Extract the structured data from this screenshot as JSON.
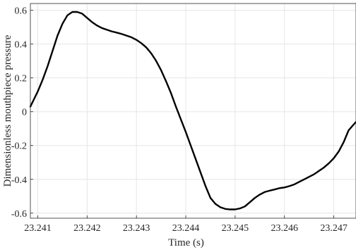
{
  "chart_data": {
    "type": "line",
    "title": "",
    "xlabel": "Time (s)",
    "ylabel": "Dimensionless mouthpiece pressure",
    "xlim": [
      23.24085,
      23.24745
    ],
    "ylim": [
      -0.63,
      0.64
    ],
    "x_ticks": [
      23.241,
      23.242,
      23.243,
      23.244,
      23.245,
      23.246,
      23.247
    ],
    "x_tick_labels": [
      "23.241",
      "23.242",
      "23.243",
      "23.244",
      "23.245",
      "23.246",
      "23.247"
    ],
    "y_ticks": [
      -0.6,
      -0.4,
      -0.2,
      0,
      0.2,
      0.4,
      0.6
    ],
    "y_tick_labels": [
      "-0.6",
      "-0.4",
      "-0.2",
      "0",
      "0.2",
      "0.4",
      "0.6"
    ],
    "grid": true,
    "line_color": "#000000",
    "series": [
      {
        "x": [
          23.24085,
          23.241,
          23.2411,
          23.2412,
          23.2413,
          23.2414,
          23.2415,
          23.2416,
          23.2417,
          23.2418,
          23.2419,
          23.242,
          23.2421,
          23.2422,
          23.2423,
          23.2424,
          23.2425,
          23.2426,
          23.2427,
          23.2428,
          23.2429,
          23.243,
          23.2431,
          23.2432,
          23.2433,
          23.2434,
          23.2435,
          23.2436,
          23.2437,
          23.2438,
          23.2439,
          23.244,
          23.2441,
          23.2442,
          23.2443,
          23.2444,
          23.2445,
          23.2446,
          23.2447,
          23.2448,
          23.2449,
          23.245,
          23.2451,
          23.2452,
          23.2453,
          23.2454,
          23.2455,
          23.2456,
          23.2457,
          23.2458,
          23.2459,
          23.246,
          23.2461,
          23.2462,
          23.2463,
          23.2464,
          23.2465,
          23.2466,
          23.2467,
          23.2468,
          23.2469,
          23.247,
          23.2471,
          23.2472,
          23.2473,
          23.24745
        ],
        "y": [
          0.03,
          0.12,
          0.19,
          0.27,
          0.36,
          0.45,
          0.52,
          0.57,
          0.59,
          0.59,
          0.58,
          0.555,
          0.53,
          0.51,
          0.495,
          0.485,
          0.475,
          0.468,
          0.46,
          0.45,
          0.44,
          0.425,
          0.405,
          0.38,
          0.345,
          0.3,
          0.245,
          0.18,
          0.11,
          0.03,
          -0.045,
          -0.12,
          -0.2,
          -0.28,
          -0.36,
          -0.44,
          -0.51,
          -0.545,
          -0.565,
          -0.575,
          -0.578,
          -0.578,
          -0.572,
          -0.56,
          -0.535,
          -0.51,
          -0.49,
          -0.475,
          -0.467,
          -0.46,
          -0.452,
          -0.448,
          -0.44,
          -0.43,
          -0.415,
          -0.4,
          -0.385,
          -0.37,
          -0.35,
          -0.33,
          -0.305,
          -0.275,
          -0.235,
          -0.18,
          -0.11,
          -0.06
        ]
      }
    ]
  }
}
